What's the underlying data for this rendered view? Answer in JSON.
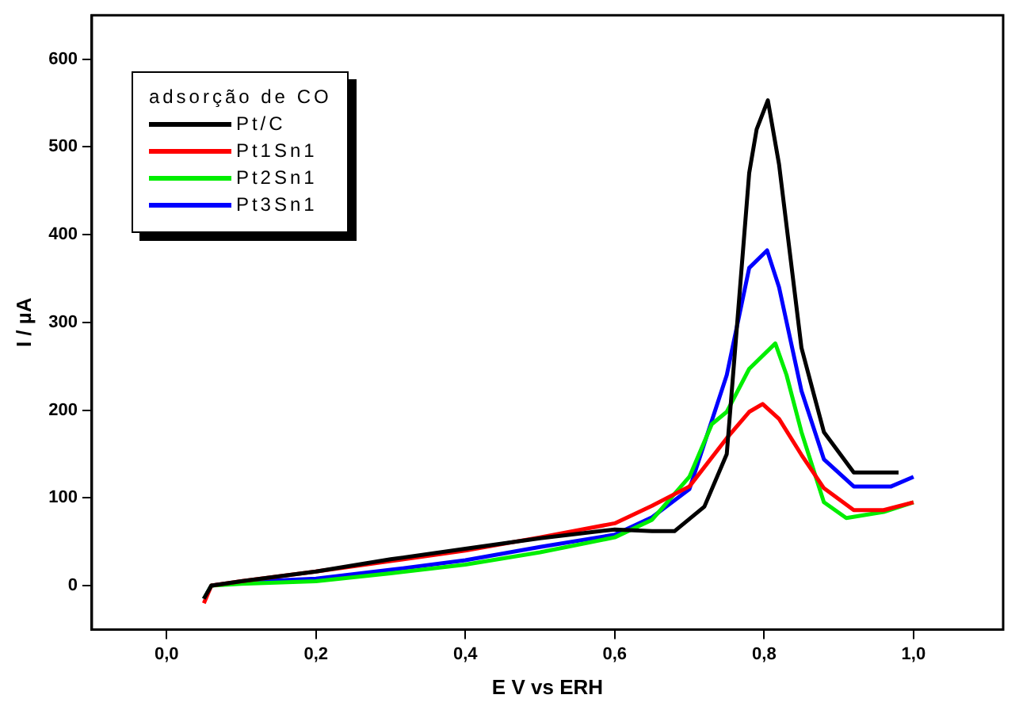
{
  "chart_data": {
    "type": "line",
    "xlabel": "E V vs ERH",
    "ylabel": "I / µA",
    "legend_title": "adsorção de CO",
    "legend": "top left",
    "grid": false,
    "marker": "none",
    "line_style": "solid",
    "xlim": [
      -0.1,
      1.12
    ],
    "xticks": [
      {
        "value": 0,
        "label": "0,0"
      },
      {
        "value": 0.2,
        "label": "0,2"
      },
      {
        "value": 0.4,
        "label": "0,4"
      },
      {
        "value": 0.6,
        "label": "0,6"
      },
      {
        "value": 0.8,
        "label": "0,8"
      },
      {
        "value": 1,
        "label": "1,0"
      }
    ],
    "ylim": [
      -50,
      650
    ],
    "yticks": [
      0,
      100,
      200,
      300,
      400,
      500,
      600
    ],
    "series": [
      {
        "name": "Pt/C",
        "color": "#000000",
        "x": [
          0.05,
          0.06,
          0.1,
          0.2,
          0.3,
          0.4,
          0.5,
          0.6,
          0.65,
          0.68,
          0.72,
          0.75,
          0.78,
          0.79,
          0.805,
          0.82,
          0.85,
          0.88,
          0.92,
          0.98
        ],
        "values": [
          -15,
          0,
          5,
          16,
          30,
          42,
          54,
          64,
          62,
          62,
          90,
          150,
          470,
          520,
          553,
          480,
          271,
          175,
          129,
          129
        ]
      },
      {
        "name": "Pt1Sn1",
        "color": "#ff0000",
        "x": [
          0.05,
          0.06,
          0.1,
          0.2,
          0.3,
          0.4,
          0.5,
          0.6,
          0.65,
          0.7,
          0.75,
          0.78,
          0.798,
          0.82,
          0.85,
          0.88,
          0.92,
          0.96,
          1.0
        ],
        "values": [
          -20,
          0,
          5,
          16,
          28,
          40,
          55,
          71,
          91,
          113,
          168,
          198,
          207,
          190,
          149,
          111,
          86,
          86,
          95
        ]
      },
      {
        "name": "Pt2Sn1",
        "color": "#00ee00",
        "x": [
          0.05,
          0.06,
          0.1,
          0.2,
          0.3,
          0.4,
          0.5,
          0.6,
          0.65,
          0.7,
          0.73,
          0.75,
          0.78,
          0.815,
          0.83,
          0.85,
          0.88,
          0.91,
          0.96,
          1.0
        ],
        "values": [
          -15,
          0,
          2,
          5,
          14,
          24,
          38,
          55,
          75,
          124,
          184,
          198,
          247,
          276,
          240,
          175,
          95,
          77,
          84,
          95
        ]
      },
      {
        "name": "Pt3Sn1",
        "color": "#0000ff",
        "x": [
          0.05,
          0.06,
          0.1,
          0.2,
          0.3,
          0.4,
          0.5,
          0.6,
          0.65,
          0.7,
          0.75,
          0.78,
          0.804,
          0.82,
          0.85,
          0.88,
          0.92,
          0.97,
          1.0
        ],
        "values": [
          -15,
          0,
          4,
          8,
          18,
          29,
          44,
          58,
          78,
          110,
          240,
          362,
          382,
          340,
          222,
          144,
          113,
          113,
          124
        ]
      }
    ]
  }
}
